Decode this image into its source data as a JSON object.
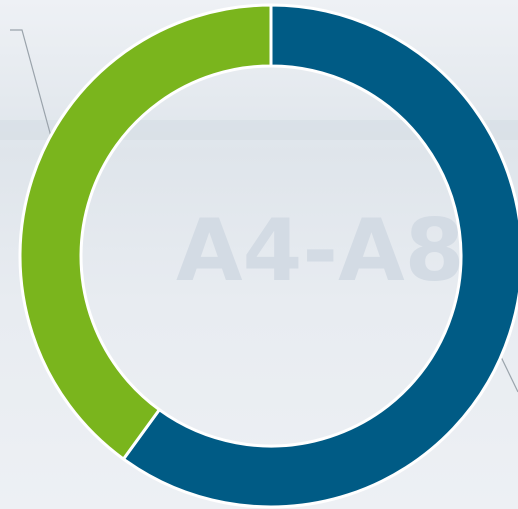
{
  "chart_data": {
    "type": "donut",
    "values": [
      60,
      40
    ],
    "colors": [
      "#005b85",
      "#7ab51d"
    ],
    "background_text": "A4-A8"
  }
}
